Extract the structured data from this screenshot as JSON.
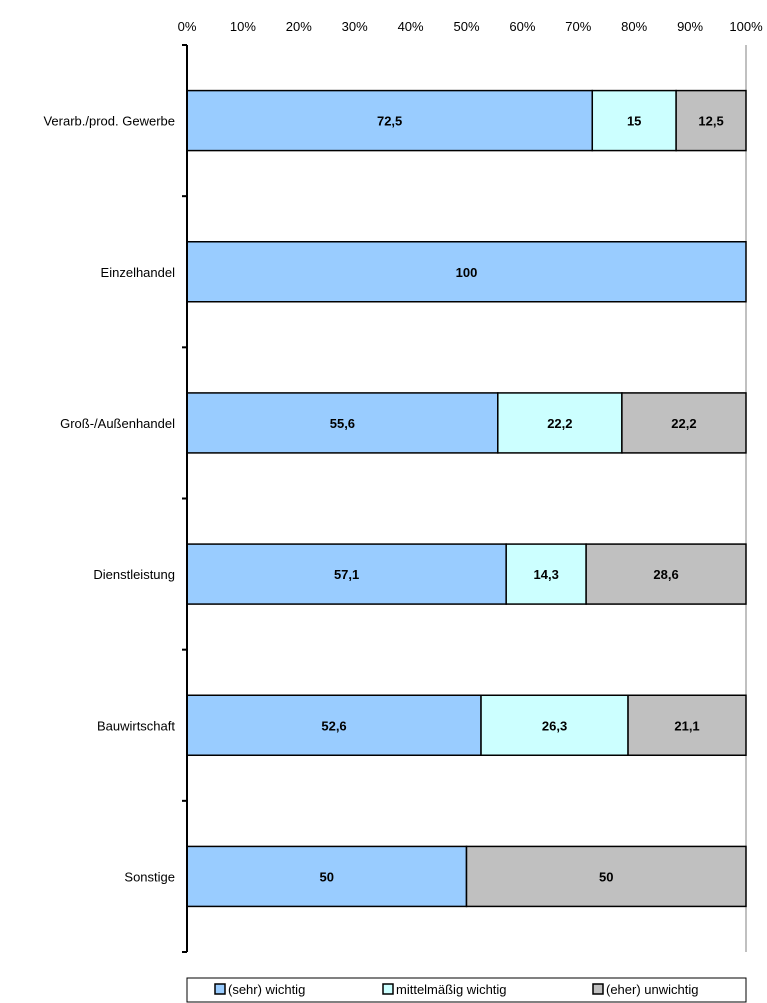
{
  "chart_data": {
    "type": "bar",
    "orientation": "horizontal",
    "stacked": "percent",
    "title": "",
    "xlabel": "",
    "ylabel": "",
    "xlim": [
      0,
      100
    ],
    "x_ticks": [
      "0%",
      "10%",
      "20%",
      "30%",
      "40%",
      "50%",
      "60%",
      "70%",
      "80%",
      "90%",
      "100%"
    ],
    "grid": false,
    "legend_position": "bottom",
    "categories": [
      "Verarb./prod. Gewerbe",
      "Einzelhandel",
      "Groß-/Außenhandel",
      "Dienstleistung",
      "Bauwirtschaft",
      "Sonstige"
    ],
    "series": [
      {
        "name": "(sehr) wichtig",
        "color": "#99ccff",
        "values": [
          72.5,
          100,
          55.6,
          57.1,
          52.6,
          50
        ],
        "labels": [
          "72,5",
          "100",
          "55,6",
          "57,1",
          "52,6",
          "50"
        ]
      },
      {
        "name": "mittelmäßig wichtig",
        "color": "#ccffff",
        "values": [
          15,
          0,
          22.2,
          14.3,
          26.3,
          0
        ],
        "labels": [
          "15",
          "",
          "22,2",
          "14,3",
          "26,3",
          ""
        ]
      },
      {
        "name": "(eher) unwichtig",
        "color": "#c0c0c0",
        "values": [
          12.5,
          0,
          22.2,
          28.6,
          21.1,
          50
        ],
        "labels": [
          "12,5",
          "",
          "22,2",
          "28,6",
          "21,1",
          "50"
        ]
      }
    ]
  }
}
